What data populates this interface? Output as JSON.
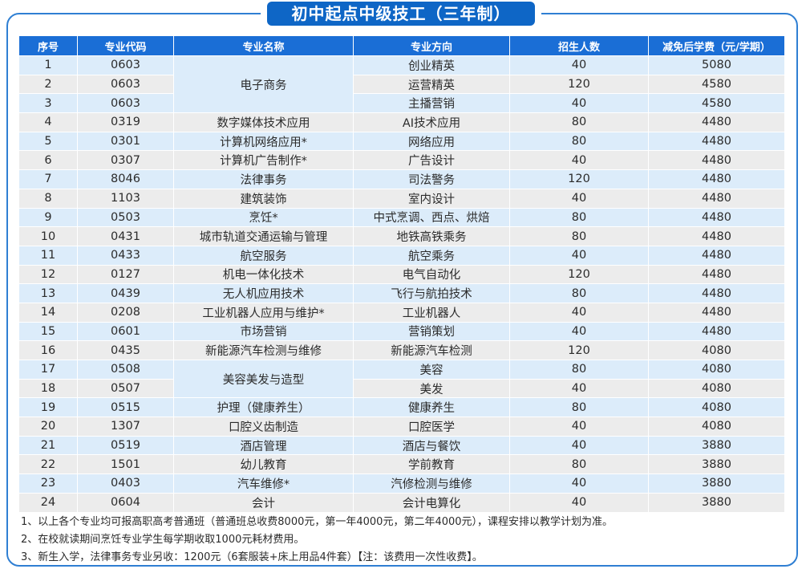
{
  "title": "初中起点中级技工（三年制）",
  "headers": [
    "序号",
    "专业代码",
    "专业名称",
    "专业方向",
    "招生人数",
    "减免后学费（元/学期）"
  ],
  "rows": [
    {
      "no": "1",
      "code": "0603",
      "name": "电子商务",
      "direction": "创业精英",
      "count": "40",
      "fee": "5080"
    },
    {
      "no": "2",
      "code": "0603",
      "name": "电子商务",
      "direction": "运营精英",
      "count": "120",
      "fee": "4580"
    },
    {
      "no": "3",
      "code": "0603",
      "name": "电子商务",
      "direction": "主播营销",
      "count": "40",
      "fee": "4580"
    },
    {
      "no": "4",
      "code": "0319",
      "name": "数字媒体技术应用",
      "direction": "AI技术应用",
      "count": "80",
      "fee": "4480"
    },
    {
      "no": "5",
      "code": "0301",
      "name": "计算机网络应用*",
      "direction": "网络应用",
      "count": "80",
      "fee": "4480"
    },
    {
      "no": "6",
      "code": "0307",
      "name": "计算机广告制作*",
      "direction": "广告设计",
      "count": "40",
      "fee": "4480"
    },
    {
      "no": "7",
      "code": "8046",
      "name": "法律事务",
      "direction": "司法警务",
      "count": "120",
      "fee": "4480"
    },
    {
      "no": "8",
      "code": "1103",
      "name": "建筑装饰",
      "direction": "室内设计",
      "count": "40",
      "fee": "4480"
    },
    {
      "no": "9",
      "code": "0503",
      "name": "烹饪*",
      "direction": "中式烹调、西点、烘焙",
      "count": "80",
      "fee": "4480"
    },
    {
      "no": "10",
      "code": "0431",
      "name": "城市轨道交通运输与管理",
      "direction": "地铁高铁乘务",
      "count": "80",
      "fee": "4480"
    },
    {
      "no": "11",
      "code": "0433",
      "name": "航空服务",
      "direction": "航空乘务",
      "count": "40",
      "fee": "4480"
    },
    {
      "no": "12",
      "code": "0127",
      "name": "机电一体化技术",
      "direction": "电气自动化",
      "count": "120",
      "fee": "4480"
    },
    {
      "no": "13",
      "code": "0439",
      "name": "无人机应用技术",
      "direction": "飞行与航拍技术",
      "count": "80",
      "fee": "4480"
    },
    {
      "no": "14",
      "code": "0208",
      "name": "工业机器人应用与维护*",
      "direction": "工业机器人",
      "count": "40",
      "fee": "4480"
    },
    {
      "no": "15",
      "code": "0601",
      "name": "市场营销",
      "direction": "营销策划",
      "count": "40",
      "fee": "4480"
    },
    {
      "no": "16",
      "code": "0435",
      "name": "新能源汽车检测与维修",
      "direction": "新能源汽车检测",
      "count": "120",
      "fee": "4080"
    },
    {
      "no": "17",
      "code": "0508",
      "name": "美容美发与造型",
      "direction": "美容",
      "count": "80",
      "fee": "4080"
    },
    {
      "no": "18",
      "code": "0507",
      "name": "美容美发与造型",
      "direction": "美发",
      "count": "40",
      "fee": "4080"
    },
    {
      "no": "19",
      "code": "0515",
      "name": "护理（健康养生）",
      "direction": "健康养生",
      "count": "80",
      "fee": "4080"
    },
    {
      "no": "20",
      "code": "1307",
      "name": "口腔义齿制造",
      "direction": "口腔医学",
      "count": "40",
      "fee": "4080"
    },
    {
      "no": "21",
      "code": "0519",
      "name": "酒店管理",
      "direction": "酒店与餐饮",
      "count": "40",
      "fee": "3880"
    },
    {
      "no": "22",
      "code": "1501",
      "name": "幼儿教育",
      "direction": "学前教育",
      "count": "80",
      "fee": "3880"
    },
    {
      "no": "23",
      "code": "0403",
      "name": "汽车维修*",
      "direction": "汽修检测与维修",
      "count": "40",
      "fee": "3880"
    },
    {
      "no": "24",
      "code": "0604",
      "name": "会计",
      "direction": "会计电算化",
      "count": "40",
      "fee": "3880"
    }
  ],
  "notes": [
    "1、以上各个专业均可报高职高考普通班（普通班总收费8000元，第一年4000元，第二年4000元），课程安排以教学计划为准。",
    "2、在校就读期间烹饪专业学生每学期收取1000元耗材费用。",
    "3、新生入学，法律事务专业另收：1200元（6套服装+床上用品4件套）【注：该费用一次性收费】。"
  ],
  "colors": {
    "accent": "#1a6ed6",
    "row_blue": "#dcecfa",
    "row_gray": "#ececec"
  }
}
